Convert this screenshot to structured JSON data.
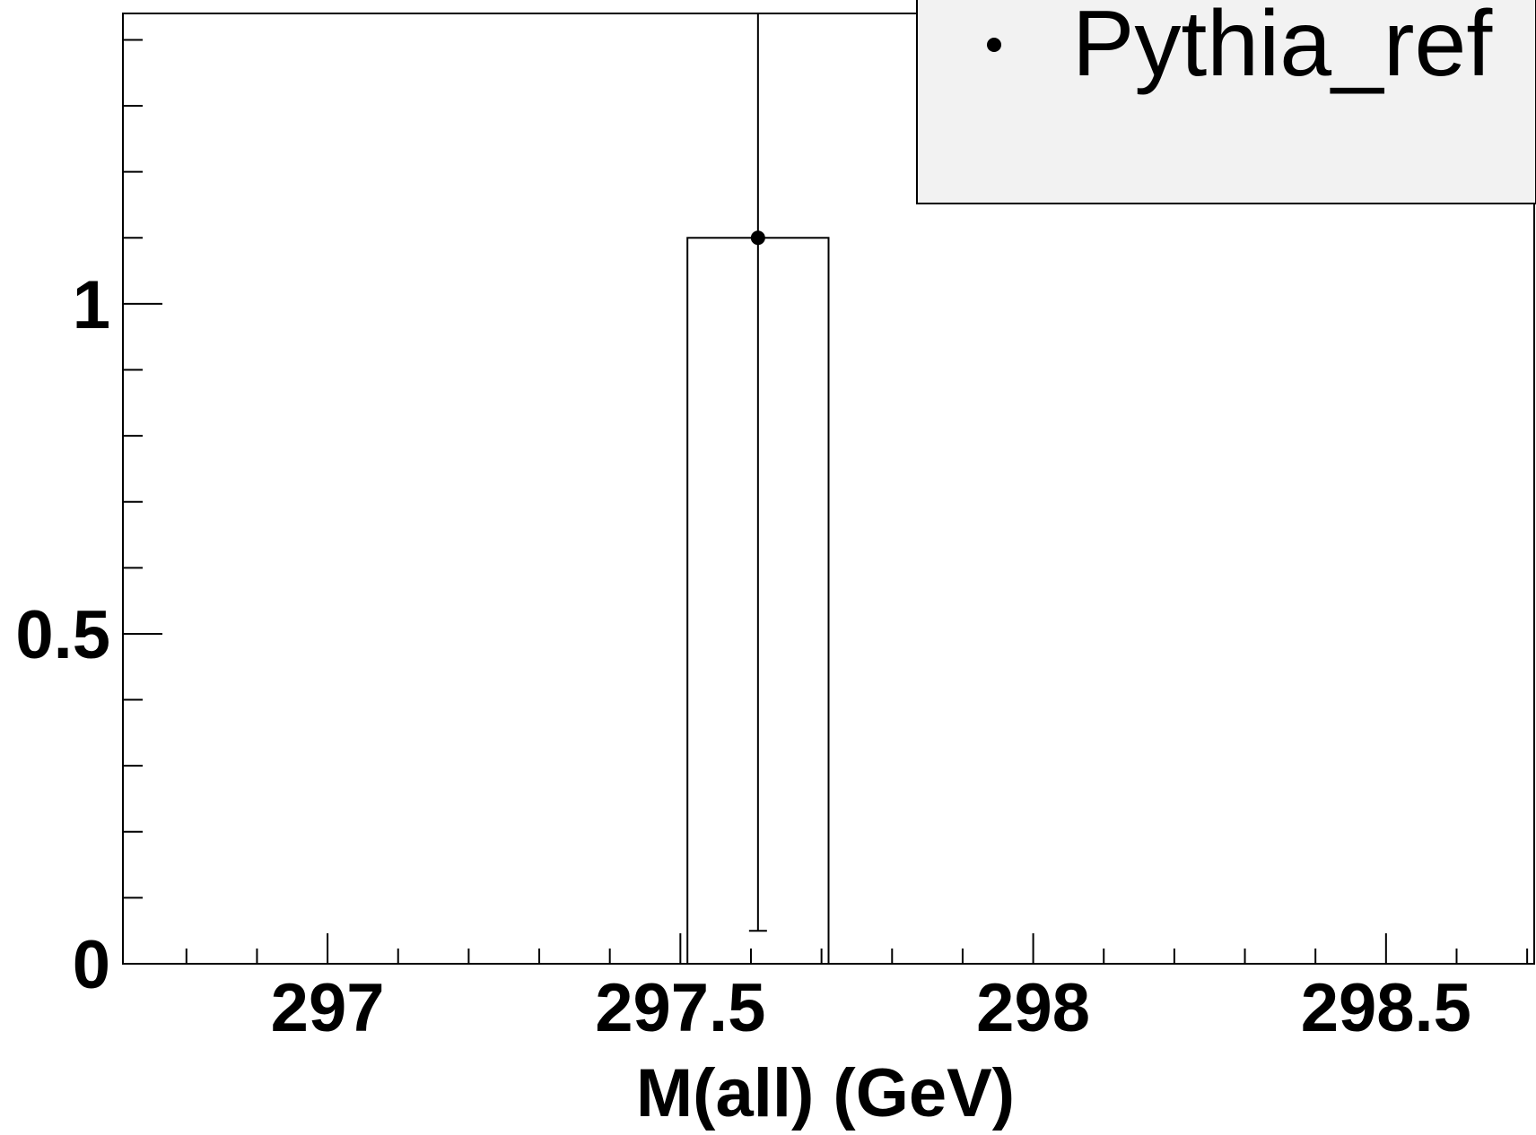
{
  "chart_data": {
    "type": "bar",
    "xlabel": "M(all) (GeV)",
    "ylabel": "",
    "xlim": [
      296.71,
      298.71
    ],
    "ylim": [
      0,
      1.44
    ],
    "x_ticks": [
      297,
      297.5,
      298,
      298.5
    ],
    "x_tick_labels": [
      "297",
      "297.5",
      "298",
      "298.5"
    ],
    "y_ticks": [
      0,
      0.5,
      1
    ],
    "y_tick_labels": [
      "0",
      "0.5",
      "1"
    ],
    "bins": [
      {
        "low": 297.51,
        "high": 297.71,
        "value": 1.1,
        "err_low": 0.05,
        "err_high": 1.44
      }
    ],
    "series": [
      {
        "name": "Pythia_ref",
        "points": [
          {
            "x": 297.61,
            "y": 1.1,
            "err_low": 0.05,
            "err_high": 1.44
          }
        ]
      }
    ],
    "legend": {
      "position": "top-right",
      "entries": [
        "Pythia_ref"
      ],
      "background": "#f2f2f2"
    },
    "grid": false,
    "colors": {
      "line": "#000000",
      "marker": "#000000"
    }
  }
}
